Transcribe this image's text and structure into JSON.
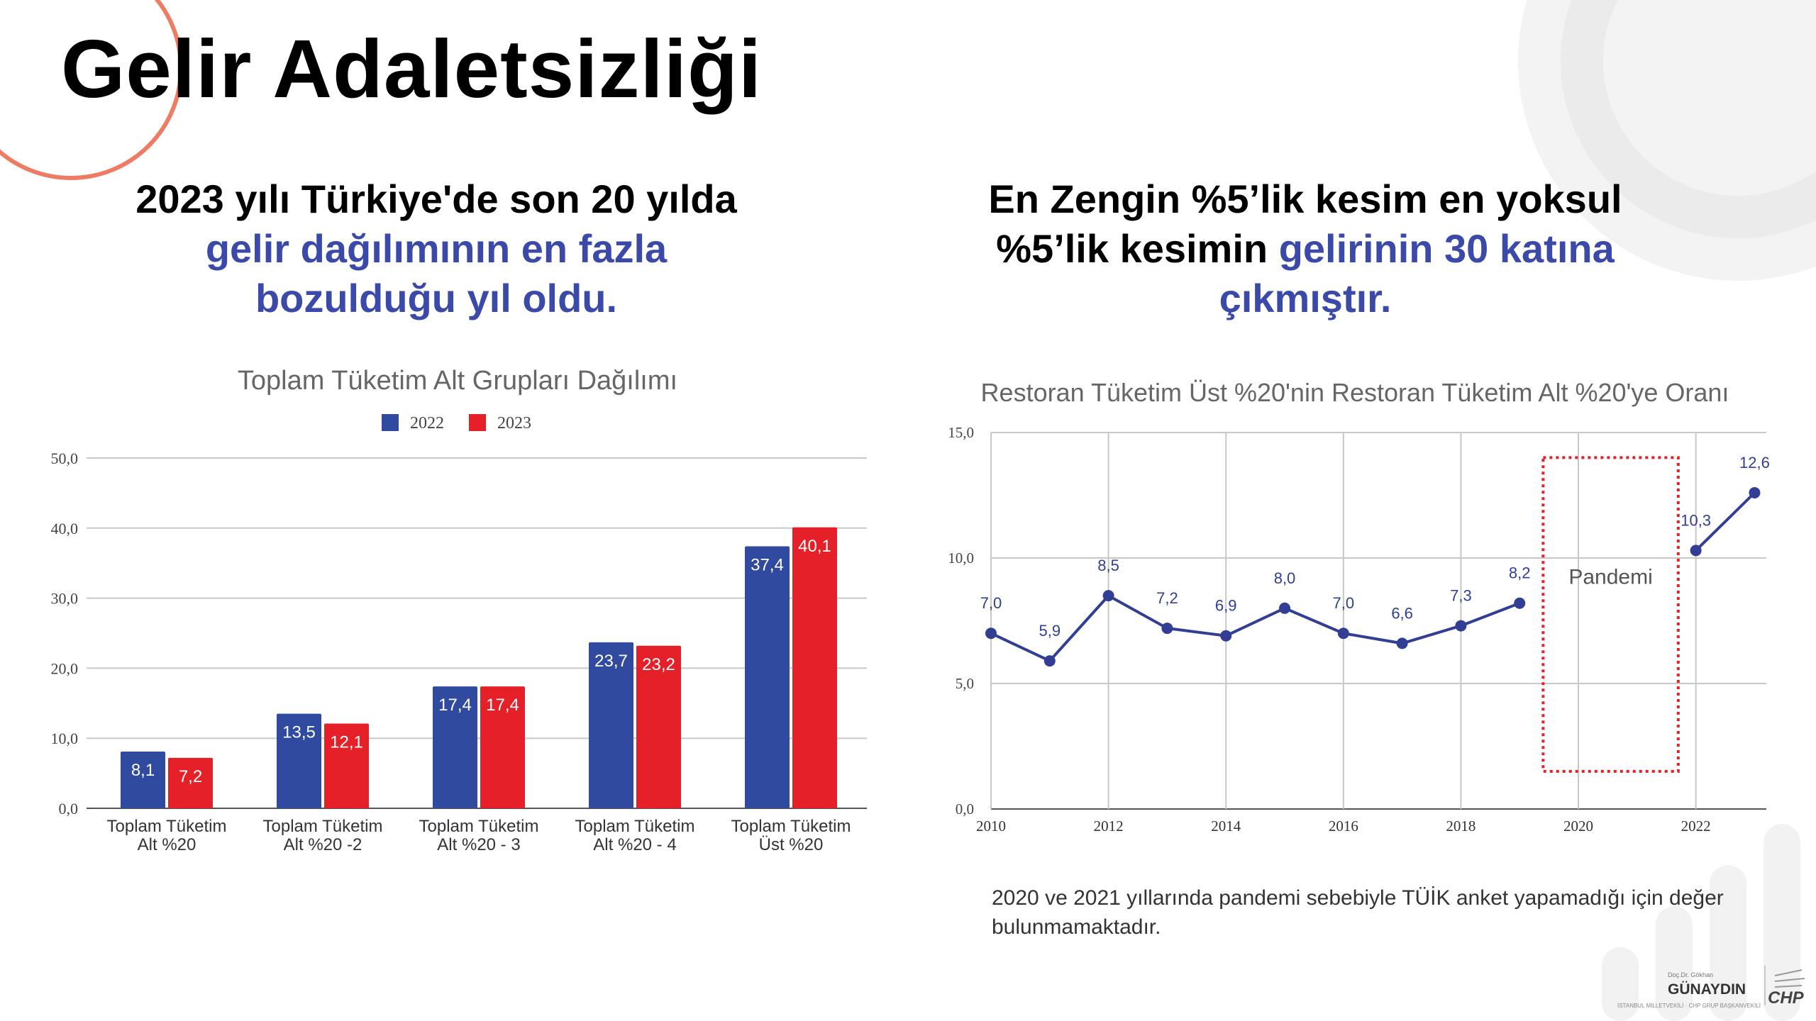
{
  "page": {
    "title": "Gelir Adaletsizliği"
  },
  "left_heading": {
    "line1": "2023 yılı Türkiye'de son 20 yılda",
    "line2": "gelir dağılımının en fazla",
    "line3": "bozulduğu yıl oldu."
  },
  "right_heading": {
    "line1": "En Zengin %5’lik kesim en yoksul",
    "line2_plain": "%5’lik kesimin ",
    "line2_accent": "gelirinin 30 katına",
    "line3": "çıkmıştır."
  },
  "note": "2020 ve 2021 yıllarında pandemi sebebiyle TÜİK anket yapamadığı için değer bulunmamaktadır.",
  "footer": {
    "signature_small": "Doç.Dr. Gökhan",
    "name": "GÜNAYDIN",
    "subtitle": "İSTANBUL MİLLETVEKİLİ · CHP GRUP BAŞKANVEKİLİ",
    "party": "CHP"
  },
  "colors": {
    "accent_text": "#3b4aa8",
    "series_2022": "#2f4a9e",
    "series_2023": "#e52028",
    "line_series": "#323e94",
    "pandemic_box": "#e52028",
    "decor_circle": "#ee7b63"
  },
  "chart_data": [
    {
      "type": "bar",
      "title": "Toplam Tüketim Alt Grupları Dağılımı",
      "categories": [
        "Toplam Tüketim Alt %20",
        "Toplam Tüketim Alt %20 -2",
        "Toplam Tüketim Alt %20 - 3",
        "Toplam Tüketim Alt %20 - 4",
        "Toplam Tüketim Üst %20"
      ],
      "category_lines": [
        [
          "Toplam Tüketim",
          "Alt %20"
        ],
        [
          "Toplam Tüketim",
          "Alt %20 -2"
        ],
        [
          "Toplam Tüketim",
          "Alt %20 - 3"
        ],
        [
          "Toplam Tüketim",
          "Alt %20 - 4"
        ],
        [
          "Toplam Tüketim",
          "Üst %20"
        ]
      ],
      "series": [
        {
          "name": "2022",
          "values": [
            8.1,
            13.5,
            17.4,
            23.7,
            37.4
          ],
          "labels": [
            "8,1",
            "13,5",
            "17,4",
            "23,7",
            "37,4"
          ]
        },
        {
          "name": "2023",
          "values": [
            7.2,
            12.1,
            17.4,
            23.2,
            40.1
          ],
          "labels": [
            "7,2",
            "12,1",
            "17,4",
            "23,2",
            "40,1"
          ]
        }
      ],
      "ylim": [
        0,
        50
      ],
      "yticks": [
        "0,0",
        "10,0",
        "20,0",
        "30,0",
        "40,0",
        "50,0"
      ],
      "legend": "top-center",
      "grid": true
    },
    {
      "type": "line",
      "title": "Restoran Tüketim Üst %20'nin Restoran Tüketim Alt %20'ye Oranı",
      "x": [
        2010,
        2011,
        2012,
        2013,
        2014,
        2015,
        2016,
        2017,
        2018,
        2019,
        2022,
        2023
      ],
      "y": [
        7.0,
        5.9,
        8.5,
        7.2,
        6.9,
        8.0,
        7.0,
        6.6,
        7.3,
        8.2,
        10.3,
        12.6
      ],
      "labels": [
        "7,0",
        "5,9",
        "8,5",
        "7,2",
        "6,9",
        "8,0",
        "7,0",
        "6,6",
        "7,3",
        "8,2",
        "10,3",
        "12,6"
      ],
      "xlim": [
        2010,
        2023
      ],
      "xticks": [
        "2010",
        "2012",
        "2014",
        "2016",
        "2018",
        "2020",
        "2022"
      ],
      "ylim": [
        0,
        15
      ],
      "yticks": [
        "0,0",
        "5,0",
        "10,0",
        "15,0"
      ],
      "grid": true,
      "annotation": {
        "text": "Pandemi",
        "x_range": [
          2019.4,
          2021.7
        ],
        "y_range": [
          1.5,
          14.0
        ]
      }
    }
  ]
}
